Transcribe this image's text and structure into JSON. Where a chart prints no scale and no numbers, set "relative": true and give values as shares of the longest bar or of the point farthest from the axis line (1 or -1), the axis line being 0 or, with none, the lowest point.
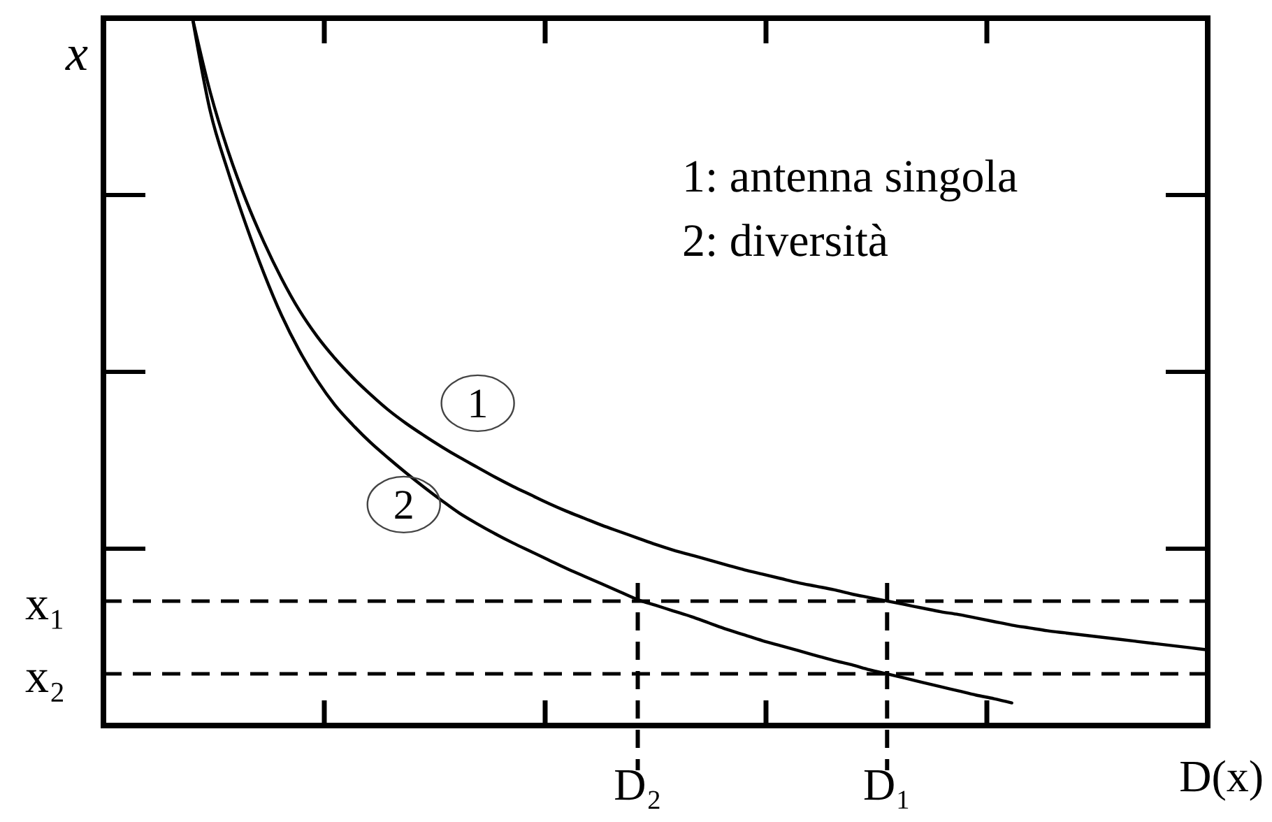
{
  "chart_data": {
    "type": "line",
    "relative": true,
    "xlabel": "D(x)",
    "ylabel": "x",
    "annotations": [
      "1: antenna singola",
      "2: diversità"
    ],
    "categories": [
      null,
      null,
      null,
      null,
      null,
      null,
      null,
      null,
      null,
      null,
      null,
      null,
      null,
      null,
      null,
      null,
      null,
      null,
      null,
      null,
      null,
      null,
      null,
      null,
      null,
      null,
      null,
      null,
      null,
      null,
      "D₂",
      null,
      null,
      null,
      null,
      null,
      null,
      null,
      null,
      null,
      null,
      null,
      null,
      null,
      "D₁",
      null,
      null,
      null,
      null,
      null,
      null,
      null,
      null,
      null,
      null,
      null,
      null,
      null,
      null,
      null,
      null,
      null,
      null
    ],
    "series": [
      {
        "name": "1",
        "color": "#000000",
        "values": [
          null,
          null,
          null,
          null,
          null,
          1.0,
          0.895,
          0.812,
          0.743,
          0.684,
          0.632,
          0.587,
          0.55,
          0.519,
          0.492,
          0.468,
          0.446,
          0.427,
          0.41,
          0.394,
          0.379,
          0.365,
          0.351,
          0.338,
          0.326,
          0.314,
          0.303,
          0.293,
          0.283,
          0.274,
          0.265,
          0.256,
          0.248,
          0.241,
          0.234,
          0.227,
          0.22,
          0.214,
          0.208,
          0.202,
          0.197,
          0.192,
          0.186,
          0.181,
          0.176,
          0.171,
          0.166,
          0.161,
          0.157,
          0.152,
          0.147,
          0.142,
          0.138,
          0.134,
          0.131,
          0.128,
          0.125,
          0.122,
          0.119,
          0.116,
          0.113,
          0.11,
          0.107
        ]
      },
      {
        "name": "2",
        "color": "#000000",
        "values": [
          null,
          null,
          null,
          null,
          null,
          1.0,
          0.868,
          0.783,
          0.708,
          0.64,
          0.58,
          0.53,
          0.488,
          0.453,
          0.425,
          0.4,
          0.378,
          0.357,
          0.337,
          0.318,
          0.3,
          0.285,
          0.271,
          0.258,
          0.246,
          0.234,
          0.222,
          0.211,
          0.2,
          0.189,
          0.178,
          0.17,
          0.162,
          0.154,
          0.145,
          0.136,
          0.128,
          0.12,
          0.113,
          0.106,
          0.099,
          0.092,
          0.086,
          0.079,
          0.073,
          0.067,
          0.061,
          0.055,
          0.049,
          0.043,
          0.038,
          0.032,
          null,
          null,
          null,
          null,
          null,
          null,
          null,
          null,
          null,
          null,
          null
        ]
      }
    ],
    "ref_lines": [
      {
        "axis": "y",
        "value": 0.176,
        "label": "x₁",
        "color": "#000000",
        "line_style": "dashed"
      },
      {
        "axis": "y",
        "value": 0.073,
        "label": "x₂",
        "color": "#000000",
        "line_style": "dashed"
      },
      {
        "axis": "x",
        "value": "D₂",
        "color": "#000000",
        "line_style": "dashed"
      },
      {
        "axis": "x",
        "value": "D₁",
        "color": "#000000",
        "line_style": "dashed"
      }
    ]
  }
}
